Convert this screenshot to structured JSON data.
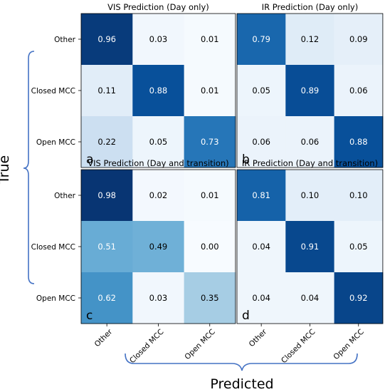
{
  "figure": {
    "ylabel": "True",
    "xlabel": "Predicted",
    "bracket_color": "#4472c4"
  },
  "chart_data": [
    {
      "type": "heatmap",
      "title": "VIS Prediction (Day only)",
      "panel_letter": "a",
      "rows": [
        "Other",
        "Closed MCC",
        "Open MCC"
      ],
      "cols": [
        "Other",
        "Closed MCC",
        "Open MCC"
      ],
      "values": [
        [
          0.96,
          0.03,
          0.01
        ],
        [
          0.11,
          0.88,
          0.01
        ],
        [
          0.22,
          0.05,
          0.73
        ]
      ],
      "labels": [
        [
          "0.96",
          "0.03",
          "0.01"
        ],
        [
          "0.11",
          "0.88",
          "0.01"
        ],
        [
          "0.22",
          "0.05",
          "0.73"
        ]
      ],
      "colormap": "Blues"
    },
    {
      "type": "heatmap",
      "title": "IR Prediction (Day only)",
      "panel_letter": "b",
      "rows": [
        "Other",
        "Closed MCC",
        "Open MCC"
      ],
      "cols": [
        "Other",
        "Closed MCC",
        "Open MCC"
      ],
      "values": [
        [
          0.79,
          0.12,
          0.09
        ],
        [
          0.05,
          0.89,
          0.06
        ],
        [
          0.06,
          0.06,
          0.88
        ]
      ],
      "labels": [
        [
          "0.79",
          "0.12",
          "0.09"
        ],
        [
          "0.05",
          "0.89",
          "0.06"
        ],
        [
          "0.06",
          "0.06",
          "0.88"
        ]
      ],
      "colormap": "Blues"
    },
    {
      "type": "heatmap",
      "title": "VIS Prediction (Day and transition)",
      "panel_letter": "c",
      "rows": [
        "Other",
        "Closed MCC",
        "Open MCC"
      ],
      "cols": [
        "Other",
        "Closed MCC",
        "Open MCC"
      ],
      "values": [
        [
          0.98,
          0.02,
          0.01
        ],
        [
          0.51,
          0.49,
          0.0
        ],
        [
          0.62,
          0.03,
          0.35
        ]
      ],
      "labels": [
        [
          "0.98",
          "0.02",
          "0.01"
        ],
        [
          "0.51",
          "0.49",
          "0.00"
        ],
        [
          "0.62",
          "0.03",
          "0.35"
        ]
      ],
      "colormap": "Blues"
    },
    {
      "type": "heatmap",
      "title": "IR Prediction (Day and transition)",
      "panel_letter": "d",
      "rows": [
        "Other",
        "Closed MCC",
        "Open MCC"
      ],
      "cols": [
        "Other",
        "Closed MCC",
        "Open MCC"
      ],
      "values": [
        [
          0.81,
          0.1,
          0.1
        ],
        [
          0.04,
          0.91,
          0.05
        ],
        [
          0.04,
          0.04,
          0.92
        ]
      ],
      "labels": [
        [
          "0.81",
          "0.10",
          "0.10"
        ],
        [
          "0.04",
          "0.91",
          "0.05"
        ],
        [
          "0.04",
          "0.04",
          "0.92"
        ]
      ],
      "colormap": "Blues"
    }
  ]
}
